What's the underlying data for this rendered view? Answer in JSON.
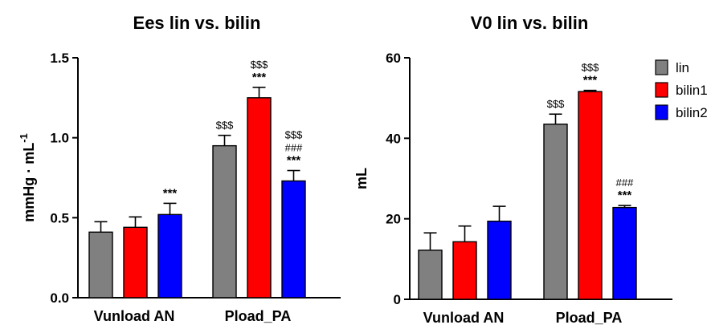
{
  "legend": [
    {
      "label": "lin",
      "color": "#808080"
    },
    {
      "label": "bilin1",
      "color": "#ff0000"
    },
    {
      "label": "bilin2",
      "color": "#0000ff"
    }
  ],
  "chart_data": [
    {
      "type": "bar",
      "title": "Ees lin vs. bilin",
      "ylabel_main": "mmHg · mL",
      "ylabel_sup": "-1",
      "ylim": [
        0,
        1.5
      ],
      "yticks": [
        "0.0",
        "0.5",
        "1.0",
        "1.5"
      ],
      "categories": [
        "Vunload AN",
        "Pload_PA"
      ],
      "series": [
        {
          "name": "lin",
          "color": "#808080",
          "values": [
            0.41,
            0.95
          ],
          "errors": [
            0.065,
            0.065
          ],
          "annotations": [
            [],
            [
              "$$$"
            ]
          ]
        },
        {
          "name": "bilin1",
          "color": "#ff0000",
          "values": [
            0.44,
            1.25
          ],
          "errors": [
            0.065,
            0.065
          ],
          "annotations": [
            [],
            [
              "$$$",
              "***"
            ]
          ]
        },
        {
          "name": "bilin2",
          "color": "#0000ff",
          "values": [
            0.52,
            0.73
          ],
          "errors": [
            0.07,
            0.065
          ],
          "annotations": [
            [
              "***"
            ],
            [
              "$$$",
              "###",
              "***"
            ]
          ]
        }
      ]
    },
    {
      "type": "bar",
      "title": "V0 lin vs. bilin",
      "ylabel_main": "mL",
      "ylabel_sup": "",
      "ylim": [
        0,
        60
      ],
      "yticks": [
        "0",
        "20",
        "40",
        "60"
      ],
      "categories": [
        "Vunload AN",
        "Pload_PA"
      ],
      "series": [
        {
          "name": "lin",
          "color": "#808080",
          "values": [
            12.2,
            43.5
          ],
          "errors": [
            4.3,
            2.5
          ],
          "annotations": [
            [],
            [
              "$$$"
            ]
          ]
        },
        {
          "name": "bilin1",
          "color": "#ff0000",
          "values": [
            14.3,
            51.6
          ],
          "errors": [
            3.9,
            0.3
          ],
          "annotations": [
            [],
            [
              "$$$",
              "***"
            ]
          ]
        },
        {
          "name": "bilin2",
          "color": "#0000ff",
          "values": [
            19.4,
            22.8
          ],
          "errors": [
            3.7,
            0.5
          ],
          "annotations": [
            [],
            [
              "###",
              "***"
            ]
          ]
        }
      ]
    }
  ]
}
